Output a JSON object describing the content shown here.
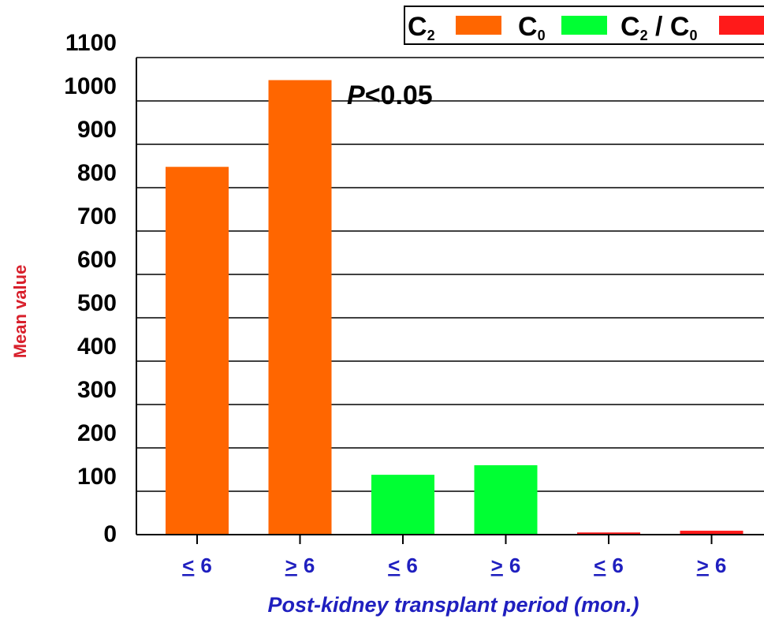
{
  "chart_data": {
    "type": "bar",
    "categories": [
      "< 6",
      "> 6",
      "< 6",
      "> 6",
      "< 6",
      "> 6"
    ],
    "category_symbols": [
      "<",
      ">",
      "<",
      ">",
      "<",
      ">"
    ],
    "category_numbers": [
      "6",
      "6",
      "6",
      "6",
      "6",
      "6"
    ],
    "series": [
      {
        "name": "C2",
        "color": "#ff6600",
        "values": [
          848,
          1048,
          null,
          null,
          null,
          null
        ]
      },
      {
        "name": "C0",
        "color": "#00ff33",
        "values": [
          null,
          null,
          138,
          160,
          null,
          null
        ]
      },
      {
        "name": "C2 / C0",
        "color": "#ff1a1a",
        "values": [
          null,
          null,
          null,
          null,
          5,
          9
        ]
      }
    ],
    "xlabel": "Post-kidney transplant period (mon.)",
    "ylabel": "Mean value",
    "ylim": [
      0,
      1100
    ],
    "yticks": [
      0,
      100,
      200,
      300,
      400,
      500,
      600,
      700,
      800,
      900,
      1000,
      1100
    ],
    "grid": true,
    "legend_position": "top-right",
    "annotation": {
      "italic": "P",
      "text": "<0.05"
    }
  },
  "legend": {
    "items": [
      {
        "main": "C",
        "sub": "2",
        "color": "#ff6600"
      },
      {
        "main": "C",
        "sub": "0",
        "color": "#00ff33"
      },
      {
        "main": "C",
        "sub": "2",
        "sep": " / ",
        "main2": "C",
        "sub2": "0",
        "color": "#ff1a1a"
      }
    ]
  }
}
